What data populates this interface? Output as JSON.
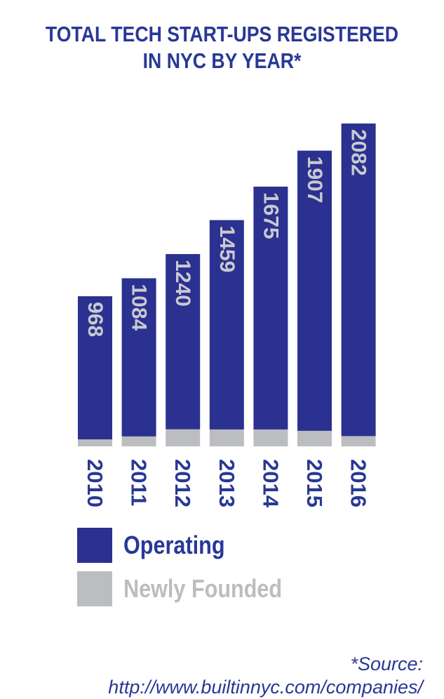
{
  "title_lines": [
    "TOTAL TECH START-UPS REGISTERED",
    "IN NYC BY YEAR*"
  ],
  "chart_data": {
    "type": "bar",
    "stacked": true,
    "categories": [
      "2010",
      "2011",
      "2012",
      "2013",
      "2014",
      "2015",
      "2016"
    ],
    "series": [
      {
        "name": "Operating",
        "values": [
          923,
          1020,
          1130,
          1350,
          1566,
          1807,
          2016
        ],
        "color": "#2b3190"
      },
      {
        "name": "Newly Founded",
        "values": [
          45,
          64,
          110,
          109,
          109,
          100,
          66
        ],
        "color": "#bcbdc0"
      }
    ],
    "totals": [
      968,
      1084,
      1240,
      1459,
      1675,
      1907,
      2082
    ],
    "ylim": [
      0,
      2100
    ],
    "grid": false,
    "legend_position": "bottom-left"
  },
  "legend": {
    "operating_label": "Operating",
    "newly_founded_label": "Newly Founded",
    "operating_color": "#2b3190",
    "newly_founded_color": "#bcbdc0",
    "operating_text_color": "#283896",
    "newly_founded_text_color": "#bcbdc0"
  },
  "source": {
    "line1": "*Source:",
    "line2": "http://www.builtinnyc.com/companies/"
  },
  "colors": {
    "title": "#283896",
    "value_label": "#c9cad0",
    "year_label": "#283896"
  }
}
